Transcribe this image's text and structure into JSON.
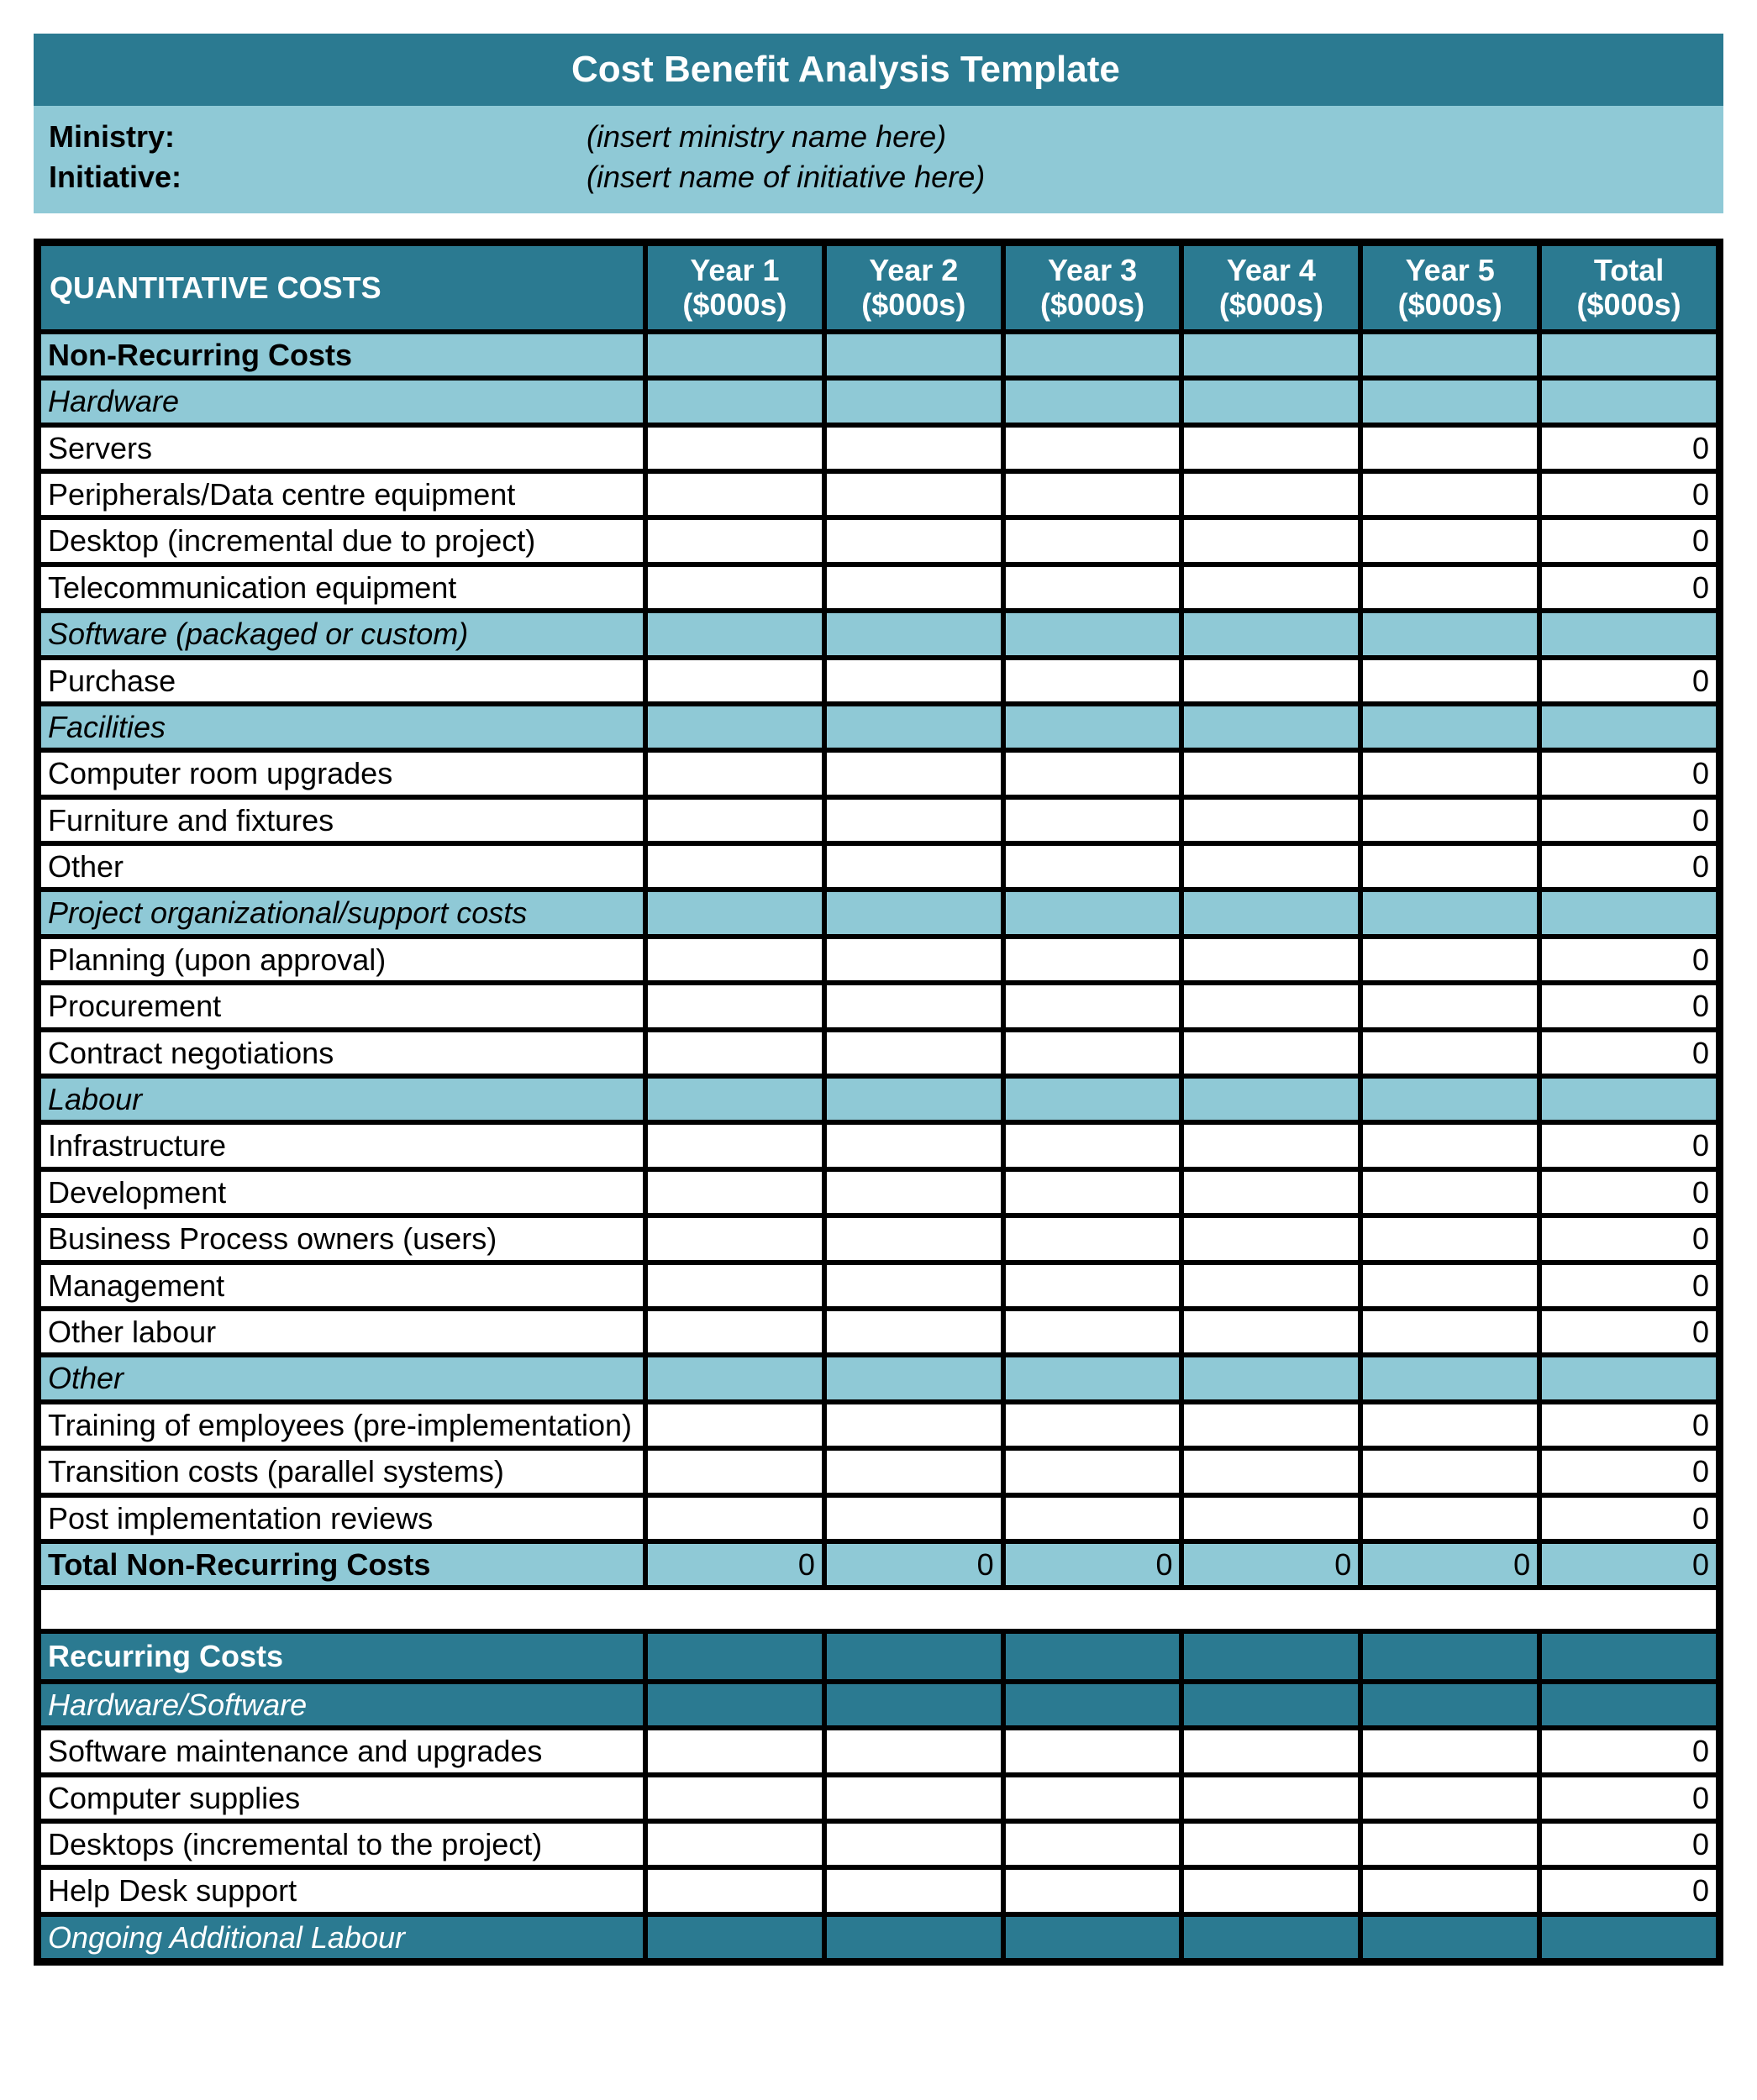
{
  "title": "Cost Benefit Analysis Template",
  "meta": {
    "ministry_label": "Ministry:",
    "ministry_value": "(insert ministry name here)",
    "initiative_label": "Initiative:",
    "initiative_value": "(insert name of initiative here)"
  },
  "colors": {
    "teal": "#2b7a91",
    "light": "#8fc9d6",
    "border": "#000000",
    "white": "#ffffff"
  },
  "columns": {
    "main": "QUANTITATIVE COSTS",
    "y1": "Year 1 ($000s)",
    "y2": "Year 2 ($000s)",
    "y3": "Year 3 ($000s)",
    "y4": "Year 4 ($000s)",
    "y5": "Year 5 ($000s)",
    "total": "Total ($000s)"
  },
  "sections": {
    "nonrecurring": "Non-Recurring Costs",
    "hardware": "Hardware",
    "software": "Software (packaged or custom)",
    "facilities": "Facilities",
    "project_org": "Project organizational/support costs",
    "labour": "Labour",
    "other": "Other",
    "total_nr": "Total Non-Recurring Costs",
    "recurring": "Recurring Costs",
    "hw_sw": "Hardware/Software",
    "ongoing_labour": "Ongoing Additional Labour"
  },
  "items": {
    "servers": "Servers",
    "peripherals": "Peripherals/Data centre equipment",
    "desktop": "Desktop (incremental due to project)",
    "telecom": "Telecommunication equipment",
    "purchase": "Purchase",
    "comp_room": "Computer room upgrades",
    "furniture": "Furniture and fixtures",
    "fac_other": "Other",
    "planning": "Planning (upon approval)",
    "procurement": "Procurement",
    "contract": "Contract negotiations",
    "infra": "Infrastructure",
    "development": "Development",
    "bpo": "Business Process owners (users)",
    "mgmt": "Management",
    "other_labour": "Other labour",
    "training": "Training of employees (pre-implementation)",
    "transition": "Transition costs (parallel systems)",
    "post_impl": "Post implementation reviews",
    "sw_maint": "Software maintenance and upgrades",
    "supplies": "Computer supplies",
    "desktops2": "Desktops (incremental to the project)",
    "helpdesk": "Help Desk support"
  },
  "totals": {
    "zero": "0",
    "nr_y1": "0",
    "nr_y2": "0",
    "nr_y3": "0",
    "nr_y4": "0",
    "nr_y5": "0",
    "nr_total": "0"
  }
}
